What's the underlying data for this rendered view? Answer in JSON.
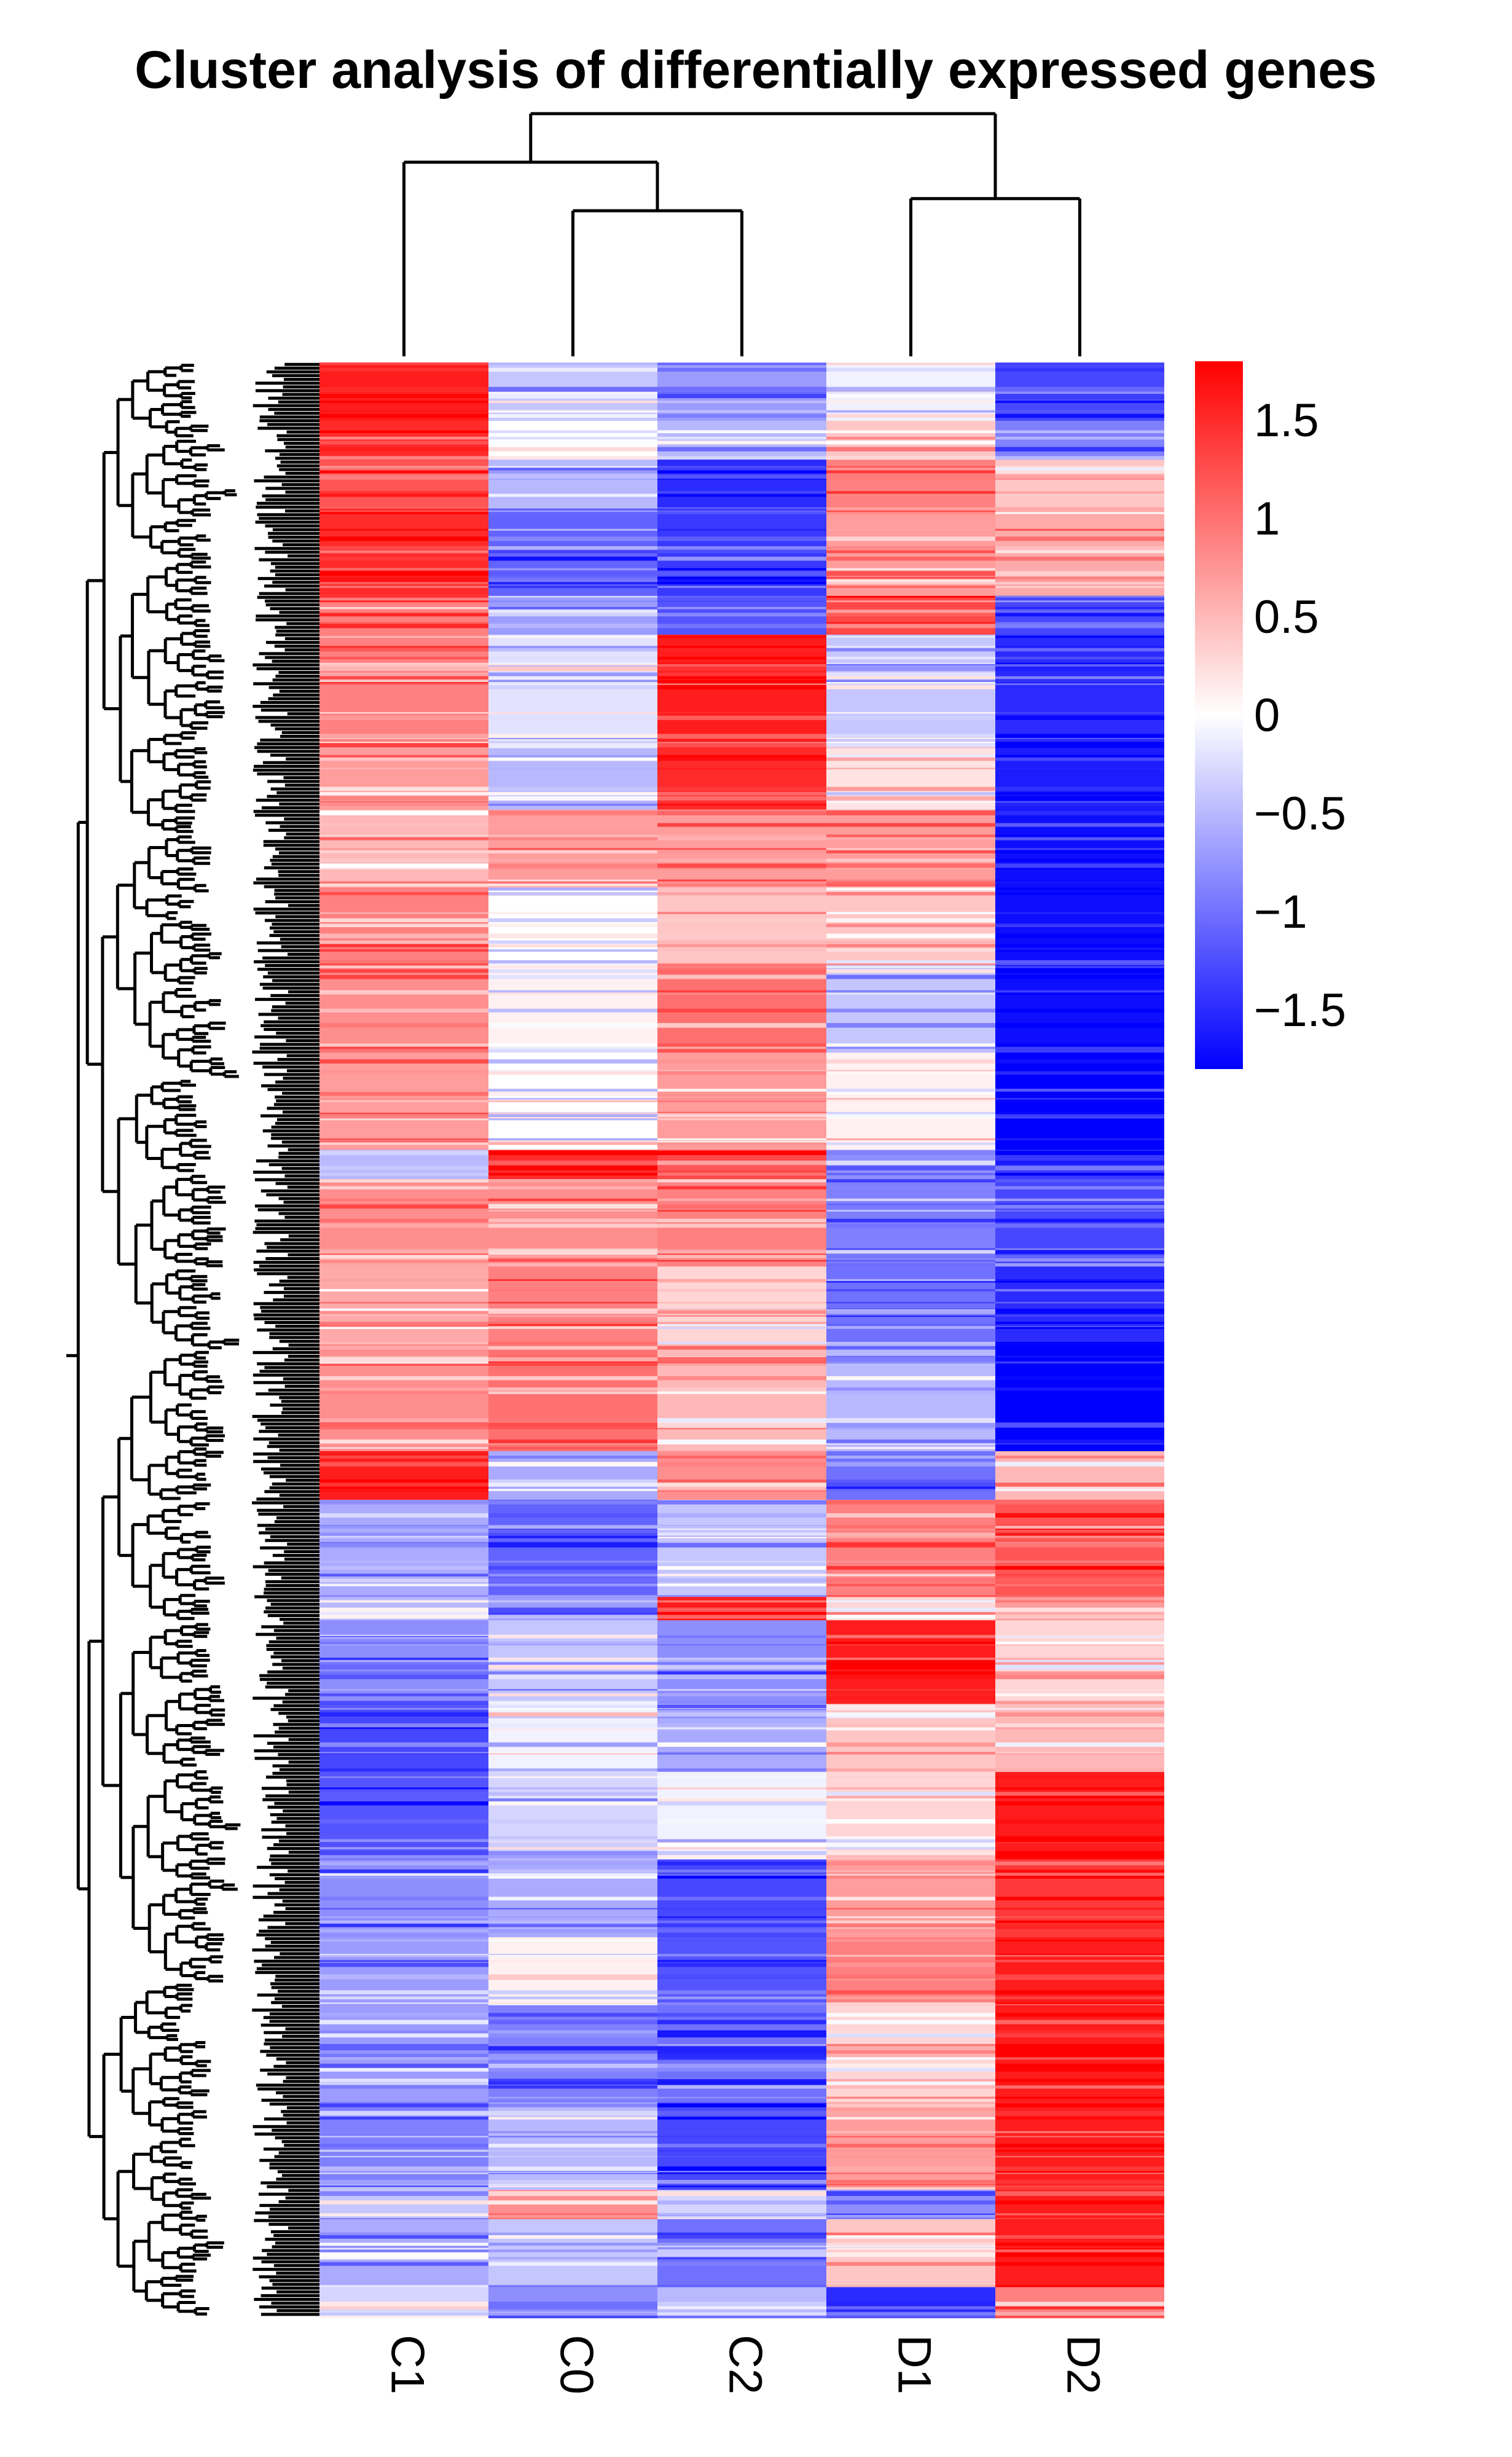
{
  "chart_data": {
    "type": "heatmap",
    "title": "Cluster analysis of differentially expressed genes",
    "columns": [
      "C1",
      "C0",
      "C2",
      "D1",
      "D2"
    ],
    "colorscale": {
      "min": -1.8,
      "max": 1.8,
      "low_color": "#0000ff",
      "mid_color": "#ffffff",
      "high_color": "#ff0000",
      "ticks": [
        1.5,
        1,
        0.5,
        0,
        -0.5,
        -1,
        -1.5
      ],
      "tick_labels": [
        "1.5",
        "1",
        "0.5",
        "0",
        "−0.5",
        "−1",
        "−1.5"
      ]
    },
    "column_dendrogram": {
      "merges": [
        {
          "left": "C0",
          "right": "C2",
          "height": 0.6
        },
        {
          "left": "C1",
          "right": "C0+C2",
          "height": 0.8
        },
        {
          "left": "D1",
          "right": "D2",
          "height": 0.65
        },
        {
          "left": "C1+C0+C2",
          "right": "D1+D2",
          "height": 1.0
        }
      ]
    },
    "row_blocks": [
      {
        "fraction": 0.03,
        "values": [
          1.6,
          -0.4,
          -0.7,
          -0.1,
          -1.3
        ]
      },
      {
        "fraction": 0.02,
        "values": [
          1.5,
          0.0,
          -0.5,
          0.4,
          -0.9
        ]
      },
      {
        "fraction": 0.025,
        "values": [
          1.2,
          -0.5,
          -1.5,
          0.9,
          0.4
        ]
      },
      {
        "fraction": 0.045,
        "values": [
          1.5,
          -1.1,
          -1.4,
          0.7,
          0.6
        ]
      },
      {
        "fraction": 0.02,
        "values": [
          0.9,
          -0.7,
          -1.2,
          1.3,
          -1.3
        ]
      },
      {
        "fraction": 0.055,
        "values": [
          0.9,
          -0.2,
          1.6,
          -0.4,
          -1.5
        ]
      },
      {
        "fraction": 0.035,
        "values": [
          0.7,
          -0.5,
          1.5,
          0.2,
          -1.6
        ]
      },
      {
        "fraction": 0.04,
        "values": [
          0.5,
          0.7,
          0.7,
          0.7,
          -1.7
        ]
      },
      {
        "fraction": 0.04,
        "values": [
          0.9,
          0.0,
          0.4,
          0.4,
          -1.7
        ]
      },
      {
        "fraction": 0.045,
        "values": [
          0.8,
          0.1,
          1.0,
          -0.4,
          -1.7
        ]
      },
      {
        "fraction": 0.05,
        "values": [
          0.7,
          0.0,
          0.7,
          0.1,
          -1.8
        ]
      },
      {
        "fraction": 0.015,
        "values": [
          -0.5,
          1.5,
          1.3,
          -0.8,
          -1.4
        ]
      },
      {
        "fraction": 0.045,
        "values": [
          0.8,
          0.8,
          0.9,
          -0.9,
          -1.3
        ]
      },
      {
        "fraction": 0.04,
        "values": [
          0.6,
          0.9,
          0.3,
          -1.0,
          -1.5
        ]
      },
      {
        "fraction": 0.055,
        "values": [
          0.8,
          1.0,
          0.5,
          -0.5,
          -1.8
        ]
      },
      {
        "fraction": 0.025,
        "values": [
          1.6,
          -0.6,
          0.8,
          -1.0,
          0.5
        ]
      },
      {
        "fraction": 0.05,
        "values": [
          -0.6,
          -1.1,
          -0.4,
          0.9,
          1.2
        ]
      },
      {
        "fraction": 0.012,
        "values": [
          -0.5,
          -0.7,
          1.6,
          0.3,
          0.7
        ]
      },
      {
        "fraction": 0.043,
        "values": [
          -0.8,
          -0.4,
          -0.8,
          1.6,
          0.3
        ]
      },
      {
        "fraction": 0.035,
        "values": [
          -1.3,
          -0.1,
          -0.6,
          0.4,
          0.5
        ]
      },
      {
        "fraction": 0.045,
        "values": [
          -1.2,
          -0.3,
          -0.1,
          0.3,
          1.6
        ]
      },
      {
        "fraction": 0.04,
        "values": [
          -0.8,
          -0.6,
          -1.3,
          0.7,
          1.4
        ]
      },
      {
        "fraction": 0.035,
        "values": [
          -0.7,
          0.1,
          -1.2,
          0.9,
          1.6
        ]
      },
      {
        "fraction": 0.05,
        "values": [
          -0.7,
          -0.9,
          -1.0,
          0.3,
          1.6
        ]
      },
      {
        "fraction": 0.045,
        "values": [
          -0.9,
          -0.5,
          -1.3,
          0.7,
          1.6
        ]
      },
      {
        "fraction": 0.015,
        "values": [
          -0.4,
          0.8,
          -0.3,
          -0.8,
          1.6
        ]
      },
      {
        "fraction": 0.035,
        "values": [
          -0.6,
          -0.4,
          -1.0,
          0.4,
          1.6
        ]
      },
      {
        "fraction": 0.015,
        "values": [
          -0.3,
          -0.8,
          -0.5,
          -1.5,
          0.9
        ]
      }
    ]
  }
}
